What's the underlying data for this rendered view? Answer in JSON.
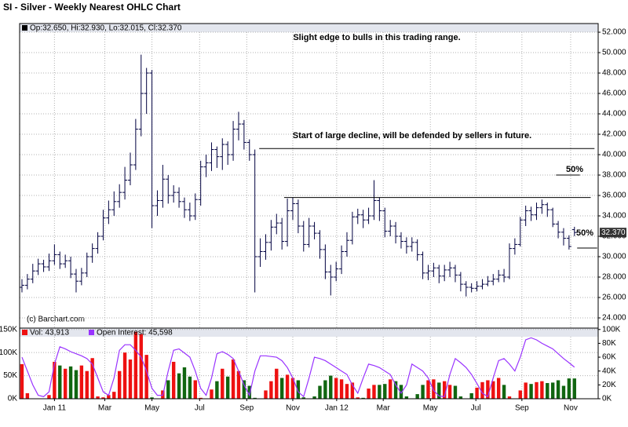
{
  "title": "SI - Silver - Weekly Nearest OHLC Chart",
  "chart_data": [
    {
      "type": "ohlc",
      "legend": "Op:32.650, Hi:32.930, Lo:32.015, Cl:32.370",
      "credit": "(c) Barchart.com",
      "color": "#000040",
      "open": [
        27.0,
        27.2,
        27.8,
        28.6,
        29.3,
        29.0,
        29.6,
        30.2,
        29.3,
        29.6,
        28.3,
        27.6,
        28.4,
        30.0,
        30.8,
        32.0,
        33.8,
        34.6,
        35.4,
        36.3,
        37.5,
        39.0,
        42.5,
        46.0,
        48.0,
        35.0,
        35.5,
        37.6,
        36.0,
        36.3,
        35.4,
        34.6,
        34.0,
        35.6,
        38.8,
        39.2,
        40.5,
        39.8,
        41.0,
        40.0,
        42.5,
        43.0,
        41.2,
        40.0,
        30.0,
        30.5,
        31.4,
        32.9,
        33.3,
        31.5,
        34.5,
        35.2,
        33.0,
        31.2,
        33.0,
        32.3,
        30.7,
        28.5,
        28.0,
        28.8,
        30.5,
        31.6,
        33.9,
        34.1,
        33.6,
        34.0,
        35.5,
        34.5,
        32.5,
        33.0,
        32.0,
        31.5,
        31.0,
        31.4,
        30.2,
        28.4,
        28.6,
        28.9,
        28.1,
        28.7,
        28.9,
        28.2,
        27.3,
        27.0,
        26.9,
        27.1,
        27.3,
        27.6,
        27.8,
        28.2,
        28.0,
        30.8,
        31.2,
        33.6,
        34.5,
        34.1,
        34.8,
        35.1,
        34.6,
        33.2,
        32.4,
        31.8,
        32.65
      ],
      "high": [
        27.8,
        28.3,
        29.3,
        29.8,
        29.7,
        30.3,
        31.2,
        30.5,
        30.2,
        30.0,
        28.8,
        28.9,
        30.4,
        31.3,
        32.4,
        34.6,
        35.5,
        36.4,
        37.1,
        38.8,
        40.2,
        43.5,
        49.8,
        48.5,
        48.3,
        36.5,
        39.0,
        38.0,
        37.0,
        36.8,
        35.8,
        35.3,
        36.2,
        39.4,
        40.0,
        41.2,
        40.8,
        41.6,
        41.3,
        43.3,
        44.2,
        43.4,
        41.5,
        40.5,
        31.8,
        32.2,
        33.6,
        34.2,
        33.8,
        35.7,
        35.8,
        35.6,
        33.5,
        33.8,
        33.4,
        32.6,
        31.2,
        29.2,
        29.5,
        31.1,
        32.4,
        34.4,
        34.7,
        34.6,
        34.8,
        37.5,
        35.8,
        34.8,
        33.6,
        33.4,
        32.4,
        31.9,
        31.9,
        31.7,
        30.5,
        29.2,
        29.4,
        29.2,
        29.2,
        29.5,
        29.2,
        28.5,
        27.6,
        27.4,
        27.6,
        27.8,
        28.1,
        28.3,
        28.7,
        28.8,
        31.3,
        31.8,
        33.9,
        35.0,
        34.9,
        35.3,
        35.6,
        35.3,
        34.8,
        33.5,
        32.8,
        32.1,
        32.93
      ],
      "low": [
        26.5,
        26.8,
        27.4,
        28.2,
        28.5,
        28.6,
        29.2,
        28.8,
        28.9,
        27.9,
        26.5,
        27.2,
        28.0,
        29.4,
        30.3,
        31.6,
        33.2,
        34.0,
        34.8,
        35.6,
        37.0,
        38.5,
        41.8,
        44.0,
        32.8,
        34.0,
        34.8,
        35.2,
        35.3,
        34.8,
        33.8,
        33.5,
        33.6,
        35.0,
        37.8,
        38.4,
        38.7,
        38.5,
        39.0,
        39.4,
        41.4,
        40.5,
        39.4,
        26.5,
        29.0,
        29.7,
        30.6,
        32.2,
        30.7,
        31.0,
        33.6,
        32.3,
        30.5,
        30.9,
        31.7,
        29.8,
        27.8,
        26.2,
        27.6,
        28.3,
        30.0,
        31.2,
        33.2,
        32.8,
        33.2,
        33.6,
        33.5,
        31.9,
        32.0,
        31.3,
        30.8,
        30.3,
        30.5,
        29.6,
        27.8,
        27.7,
        28.0,
        27.4,
        27.6,
        28.0,
        27.5,
        26.6,
        26.1,
        26.5,
        26.6,
        26.8,
        27.1,
        27.2,
        27.5,
        27.5,
        27.8,
        30.2,
        31.0,
        33.0,
        33.5,
        33.6,
        34.2,
        33.9,
        32.9,
        31.8,
        31.1,
        30.7,
        32.015
      ],
      "close": [
        27.2,
        27.8,
        28.6,
        29.3,
        29.0,
        29.6,
        30.2,
        29.3,
        29.6,
        28.3,
        27.6,
        28.4,
        30.0,
        30.8,
        32.0,
        33.8,
        34.6,
        35.4,
        36.3,
        37.5,
        39.0,
        42.5,
        46.0,
        48.0,
        35.0,
        35.5,
        37.6,
        36.0,
        36.3,
        35.4,
        34.6,
        34.0,
        35.6,
        38.8,
        39.2,
        40.5,
        39.8,
        41.0,
        40.0,
        42.5,
        43.0,
        41.2,
        40.0,
        30.0,
        30.5,
        31.4,
        32.9,
        33.3,
        31.5,
        34.5,
        35.2,
        33.0,
        31.2,
        33.0,
        32.3,
        30.7,
        28.5,
        28.0,
        28.8,
        30.5,
        31.6,
        33.9,
        34.1,
        33.6,
        34.0,
        35.5,
        34.5,
        32.5,
        33.0,
        32.0,
        31.5,
        31.0,
        31.4,
        30.2,
        28.4,
        28.6,
        28.9,
        28.1,
        28.7,
        28.9,
        28.2,
        27.3,
        27.0,
        26.9,
        27.1,
        27.3,
        27.6,
        27.8,
        28.2,
        28.0,
        30.8,
        31.2,
        33.6,
        34.5,
        34.1,
        34.8,
        35.1,
        34.6,
        33.2,
        32.4,
        31.8,
        31.0,
        32.37
      ],
      "last_label": "32.370",
      "ylim": [
        23.0,
        52.85
      ],
      "yticks": [
        {
          "value": 24,
          "label": "24.000"
        },
        {
          "value": 26,
          "label": "26.000"
        },
        {
          "value": 28,
          "label": "28.000"
        },
        {
          "value": 30,
          "label": "30.000"
        },
        {
          "value": 32,
          "label": "32.000"
        },
        {
          "value": 34,
          "label": "34.000"
        },
        {
          "value": 36,
          "label": "36.000"
        },
        {
          "value": 38,
          "label": "38.000"
        },
        {
          "value": 40,
          "label": "40.000"
        },
        {
          "value": 42,
          "label": "42.000"
        },
        {
          "value": 44,
          "label": "44.000"
        },
        {
          "value": 46,
          "label": "46.000"
        },
        {
          "value": 48,
          "label": "48.000"
        },
        {
          "value": 50,
          "label": "50.000"
        },
        {
          "value": 52,
          "label": "52.000"
        }
      ],
      "grid": true,
      "annotations": [
        "Slight edge to bulls in this trading range.",
        "Start of large decline, will be defended by sellers in future.",
        "50%",
        "50%"
      ],
      "levels": [
        40.6,
        35.8,
        38.0,
        30.85
      ]
    },
    {
      "type": "volume",
      "xlim": [
        -0.43,
        106.38
      ],
      "xticks": [
        {
          "value": 6,
          "label": "Jan 11"
        },
        {
          "value": 15.3,
          "label": "Mar"
        },
        {
          "value": 24,
          "label": "May"
        },
        {
          "value": 32.8,
          "label": "Jul"
        },
        {
          "value": 41.5,
          "label": "Sep"
        },
        {
          "value": 50,
          "label": "Nov"
        },
        {
          "value": 58.1,
          "label": "Jan 12"
        },
        {
          "value": 66.7,
          "label": "Mar"
        },
        {
          "value": 75.4,
          "label": "May"
        },
        {
          "value": 83.8,
          "label": "Jul"
        },
        {
          "value": 92.3,
          "label": "Sep"
        },
        {
          "value": 101.3,
          "label": "Nov"
        }
      ],
      "series": [
        {
          "name": "Vol: 43,913",
          "up_color": "#ee1111",
          "down_color": "#116611",
          "values": [
            75000,
            12000,
            0,
            0,
            0,
            8000,
            80000,
            72000,
            65000,
            70000,
            62000,
            72000,
            60000,
            88000,
            5000,
            3000,
            8000,
            15000,
            60000,
            100000,
            85000,
            145000,
            140000,
            95000,
            3000,
            0,
            18000,
            40000,
            80000,
            55000,
            68000,
            48000,
            40000,
            2000,
            0,
            20000,
            38000,
            65000,
            48000,
            85000,
            60000,
            40000,
            28000,
            2000,
            0,
            18000,
            38000,
            65000,
            45000,
            52000,
            45000,
            40000,
            3000,
            0,
            5000,
            28000,
            40000,
            50000,
            45000,
            42000,
            32000,
            35000,
            3000,
            2000,
            22000,
            30000,
            30000,
            32000,
            42000,
            38000,
            30000,
            5000,
            0,
            10000,
            30000,
            40000,
            42000,
            35000,
            38000,
            30000,
            28000,
            5000,
            0,
            12000,
            24000,
            36000,
            40000,
            38000,
            45000,
            30000,
            5000,
            0,
            18000,
            35000,
            32000,
            36000,
            38000,
            34000,
            35000,
            40000,
            28000,
            44000,
            43913
          ]
        },
        {
          "name": "Open Interest: 45,598",
          "axis": "y2",
          "color": "#9933ff",
          "values": [
            60000,
            40000,
            20000,
            5000,
            3000,
            10000,
            50000,
            75000,
            72000,
            68000,
            65000,
            62000,
            58000,
            50000,
            30000,
            10000,
            5000,
            30000,
            70000,
            78000,
            78000,
            70000,
            60000,
            40000,
            15000,
            5000,
            5000,
            40000,
            70000,
            72000,
            66000,
            60000,
            40000,
            15000,
            5000,
            30000,
            65000,
            68000,
            64000,
            58000,
            40000,
            20000,
            5000,
            40000,
            62000,
            62000,
            61000,
            60000,
            55000,
            45000,
            30000,
            10000,
            3000,
            30000,
            60000,
            58000,
            55000,
            50000,
            45000,
            40000,
            35000,
            20000,
            8000,
            30000,
            50000,
            48000,
            45000,
            40000,
            35000,
            20000,
            8000,
            20000,
            50000,
            45000,
            40000,
            30000,
            12000,
            4000,
            3000,
            35000,
            58000,
            52000,
            45000,
            35000,
            22000,
            8000,
            3000,
            30000,
            55000,
            58000,
            50000,
            40000,
            60000,
            85000,
            88000,
            85000,
            80000,
            76000,
            72000,
            65000,
            58000,
            52000,
            45598
          ]
        }
      ],
      "ylim": [
        0,
        153000
      ],
      "yticks": [
        {
          "value": 0,
          "label": "0K"
        },
        {
          "value": 50000,
          "label": "50K"
        },
        {
          "value": 100000,
          "label": "100K"
        },
        {
          "value": 150000,
          "label": "150K"
        }
      ],
      "y2lim": [
        0,
        102000
      ],
      "y2ticks": [
        {
          "value": 0,
          "label": "0K"
        },
        {
          "value": 20000,
          "label": "20K"
        },
        {
          "value": 40000,
          "label": "40K"
        },
        {
          "value": 60000,
          "label": "60K"
        },
        {
          "value": 80000,
          "label": "80K"
        },
        {
          "value": 100000,
          "label": "100K"
        }
      ]
    }
  ]
}
